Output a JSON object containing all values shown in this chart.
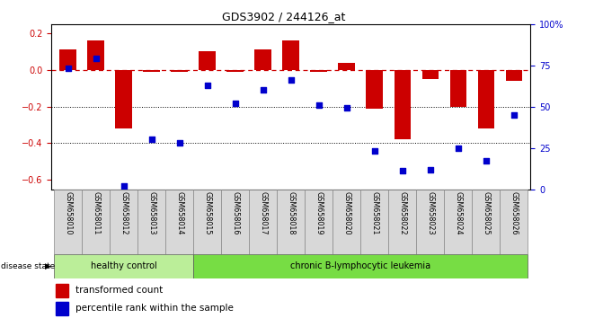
{
  "title": "GDS3902 / 244126_at",
  "samples": [
    "GSM658010",
    "GSM658011",
    "GSM658012",
    "GSM658013",
    "GSM658014",
    "GSM658015",
    "GSM658016",
    "GSM658017",
    "GSM658018",
    "GSM658019",
    "GSM658020",
    "GSM658021",
    "GSM658022",
    "GSM658023",
    "GSM658024",
    "GSM658025",
    "GSM658026"
  ],
  "bar_values": [
    0.11,
    0.16,
    -0.32,
    -0.01,
    -0.01,
    0.1,
    -0.01,
    0.11,
    0.16,
    -0.01,
    0.04,
    -0.21,
    -0.38,
    -0.05,
    -0.2,
    -0.32,
    -0.06
  ],
  "dot_values": [
    73,
    79,
    2,
    30,
    28,
    63,
    52,
    60,
    66,
    51,
    49,
    23,
    11,
    12,
    25,
    17,
    45
  ],
  "bar_color": "#cc0000",
  "dot_color": "#0000cc",
  "ylim_left": [
    -0.65,
    0.25
  ],
  "ylim_right": [
    0,
    100
  ],
  "yticks_left": [
    -0.6,
    -0.4,
    -0.2,
    0.0,
    0.2
  ],
  "yticks_right": [
    0,
    25,
    50,
    75,
    100
  ],
  "ytick_labels_right": [
    "0",
    "25",
    "50",
    "75",
    "100%"
  ],
  "dotted_lines": [
    -0.2,
    -0.4
  ],
  "healthy_label": "healthy control",
  "disease_label": "chronic B-lymphocytic leukemia",
  "disease_state_label": "disease state",
  "legend_bar_label": "transformed count",
  "legend_dot_label": "percentile rank within the sample",
  "bar_width": 0.6,
  "healthy_bg": "#bbee99",
  "disease_bg": "#77dd44",
  "label_bg": "#d8d8d8",
  "n_healthy": 5,
  "n_total": 17
}
